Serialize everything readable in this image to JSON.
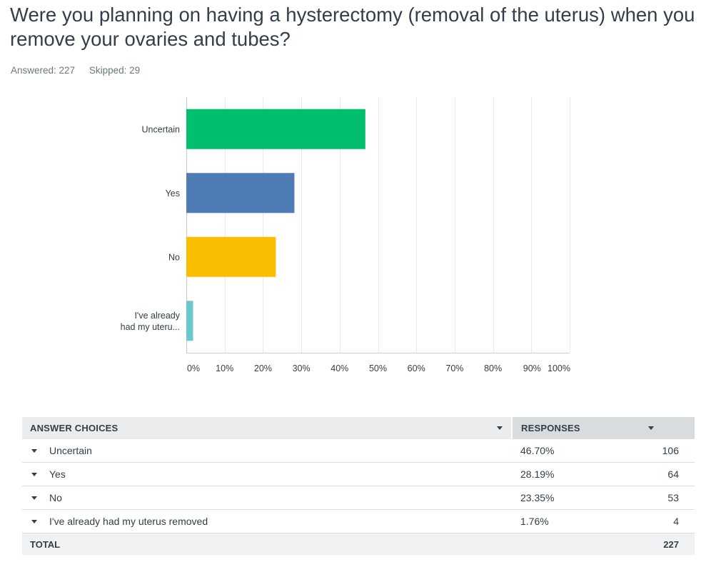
{
  "question": {
    "title": "Were you planning on having a hysterectomy (removal of the uterus) when you remove your ovaries and tubes?",
    "answered_label": "Answered: 227",
    "skipped_label": "Skipped: 29"
  },
  "chart_data": {
    "type": "bar",
    "orientation": "horizontal",
    "categories": [
      "Uncertain",
      "Yes",
      "No",
      "I've already had my uteru..."
    ],
    "category_lines": [
      [
        "Uncertain"
      ],
      [
        "Yes"
      ],
      [
        "No"
      ],
      [
        "I've already",
        "had my uteru..."
      ]
    ],
    "values": [
      46.7,
      28.19,
      23.35,
      1.76
    ],
    "colors": [
      "#00bf6f",
      "#507cb6",
      "#f9be00",
      "#6bc8cd"
    ],
    "xlim": [
      0,
      100
    ],
    "xticks": [
      "0%",
      "10%",
      "20%",
      "30%",
      "40%",
      "50%",
      "60%",
      "70%",
      "80%",
      "90%",
      "100%"
    ],
    "grid": true
  },
  "table": {
    "headers": {
      "choices": "ANSWER CHOICES",
      "responses": "RESPONSES"
    },
    "rows": [
      {
        "choice": "Uncertain",
        "percent": "46.70%",
        "count": "106"
      },
      {
        "choice": "Yes",
        "percent": "28.19%",
        "count": "64"
      },
      {
        "choice": "No",
        "percent": "23.35%",
        "count": "53"
      },
      {
        "choice": "I've already had my uterus removed",
        "percent": "1.76%",
        "count": "4"
      }
    ],
    "total": {
      "label": "TOTAL",
      "count": "227"
    }
  }
}
